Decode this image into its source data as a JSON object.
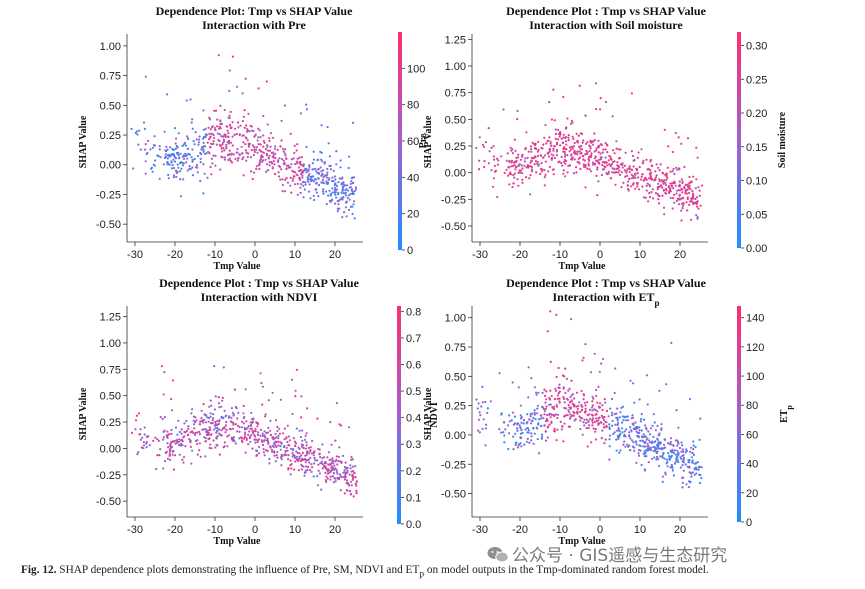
{
  "caption": {
    "label": "Fig. 12.",
    "text": "SHAP dependence plots demonstrating the influence of Pre, SM, NDVI and ET",
    "sub": "p",
    "tail": " on model outputs in the Tmp-dominated random forest model."
  },
  "watermark": {
    "icon": "wechat-icon",
    "text": "公众号 · GIS遥感与生态研究"
  },
  "colors": {
    "low": "#1e90ff",
    "mid": "#a35fd0",
    "high": "#ff2d6e"
  },
  "chart_data": [
    {
      "type": "scatter",
      "title": "Dependence Plot: Tmp vs SHAP Value",
      "subtitle": "Interaction with Pre",
      "xlabel": "Tmp Value",
      "ylabel": "SHAP Value",
      "xlim": [
        -32,
        27
      ],
      "ylim": [
        -0.65,
        1.1
      ],
      "xticks": [
        -30,
        -20,
        -10,
        0,
        10,
        20
      ],
      "yticks": [
        -0.5,
        -0.25,
        0.0,
        0.25,
        0.5,
        0.75,
        1.0
      ],
      "ytick_labels": [
        "-0.50",
        "-0.25",
        "0.00",
        "0.25",
        "0.50",
        "0.75",
        "1.00"
      ],
      "colorbar": {
        "label": "Pre",
        "label_sub": "",
        "range": [
          0,
          120
        ],
        "ticks": [
          0,
          20,
          40,
          60,
          80,
          100
        ],
        "tick_labels": [
          "0",
          "20",
          "40",
          "60",
          "80",
          "100"
        ]
      },
      "trend_x": [
        -30,
        -20,
        -10,
        0,
        10,
        20,
        25
      ],
      "trend_y": [
        0.18,
        0.02,
        0.23,
        0.15,
        -0.03,
        -0.2,
        -0.3
      ],
      "color_mode": "pre",
      "n_points": 760
    },
    {
      "type": "scatter",
      "title": "Dependence Plot : Tmp vs SHAP Value",
      "subtitle": "Interaction with Soil moisture",
      "xlabel": "Tmp Value",
      "ylabel": "SHAP Value",
      "xlim": [
        -32,
        27
      ],
      "ylim": [
        -0.65,
        1.3
      ],
      "xticks": [
        -30,
        -20,
        -10,
        0,
        10,
        20
      ],
      "yticks": [
        -0.5,
        -0.25,
        0.0,
        0.25,
        0.5,
        0.75,
        1.0,
        1.25
      ],
      "ytick_labels": [
        "-0.50",
        "-0.25",
        "0.00",
        "0.25",
        "0.50",
        "0.75",
        "1.00",
        "1.25"
      ],
      "colorbar": {
        "label": "Soil moisture",
        "label_sub": "",
        "range": [
          0,
          0.32
        ],
        "ticks": [
          0,
          0.05,
          0.1,
          0.15,
          0.2,
          0.25,
          0.3
        ],
        "tick_labels": [
          "0.00",
          "0.05",
          "0.10",
          "0.15",
          "0.20",
          "0.25",
          "0.30"
        ]
      },
      "trend_x": [
        -30,
        -20,
        -10,
        0,
        10,
        20,
        25
      ],
      "trend_y": [
        0.12,
        0.05,
        0.24,
        0.15,
        -0.03,
        -0.18,
        -0.3
      ],
      "color_mode": "sm",
      "n_points": 760
    },
    {
      "type": "scatter",
      "title": "Dependence Plot : Tmp vs SHAP Value",
      "subtitle": "Interaction with NDVI",
      "xlabel": "Tmp Value",
      "ylabel": "SHAP Value",
      "xlim": [
        -32,
        27
      ],
      "ylim": [
        -0.65,
        1.35
      ],
      "xticks": [
        -30,
        -20,
        -10,
        0,
        10,
        20
      ],
      "yticks": [
        -0.5,
        -0.25,
        0.0,
        0.25,
        0.5,
        0.75,
        1.0,
        1.25
      ],
      "ytick_labels": [
        "-0.50",
        "-0.25",
        "0.00",
        "0.25",
        "0.50",
        "0.75",
        "1.00",
        "1.25"
      ],
      "colorbar": {
        "label": "NDVI",
        "label_sub": "",
        "range": [
          0,
          0.82
        ],
        "ticks": [
          0,
          0.1,
          0.2,
          0.3,
          0.4,
          0.5,
          0.6,
          0.7,
          0.8
        ],
        "tick_labels": [
          "0.0",
          "0.1",
          "0.2",
          "0.3",
          "0.4",
          "0.5",
          "0.6",
          "0.7",
          "0.8"
        ]
      },
      "trend_x": [
        -30,
        -20,
        -10,
        0,
        10,
        20,
        25
      ],
      "trend_y": [
        0.14,
        0.04,
        0.25,
        0.14,
        -0.03,
        -0.2,
        -0.3
      ],
      "color_mode": "ndvi",
      "n_points": 760
    },
    {
      "type": "scatter",
      "title": "Dependence Plot : Tmp vs SHAP Value",
      "subtitle": "Interaction with ET",
      "subtitle_sub": "p",
      "xlabel": "Tmp Value",
      "ylabel": "SHAP Value",
      "xlim": [
        -32,
        27
      ],
      "ylim": [
        -0.7,
        1.1
      ],
      "xticks": [
        -30,
        -20,
        -10,
        0,
        10,
        20
      ],
      "yticks": [
        -0.5,
        -0.25,
        0.0,
        0.25,
        0.5,
        0.75,
        1.0
      ],
      "ytick_labels": [
        "-0.50",
        "-0.25",
        "0.00",
        "0.25",
        "0.50",
        "0.75",
        "1.00"
      ],
      "colorbar": {
        "label": "ET",
        "label_sub": "p",
        "range": [
          0,
          148
        ],
        "ticks": [
          0,
          20,
          40,
          60,
          80,
          100,
          120,
          140
        ],
        "tick_labels": [
          "0",
          "20",
          "40",
          "60",
          "80",
          "100",
          "120",
          "140"
        ]
      },
      "trend_x": [
        -30,
        -20,
        -10,
        0,
        10,
        20,
        25
      ],
      "trend_y": [
        0.16,
        0.04,
        0.25,
        0.15,
        -0.03,
        -0.2,
        -0.32
      ],
      "color_mode": "et",
      "n_points": 760
    }
  ]
}
